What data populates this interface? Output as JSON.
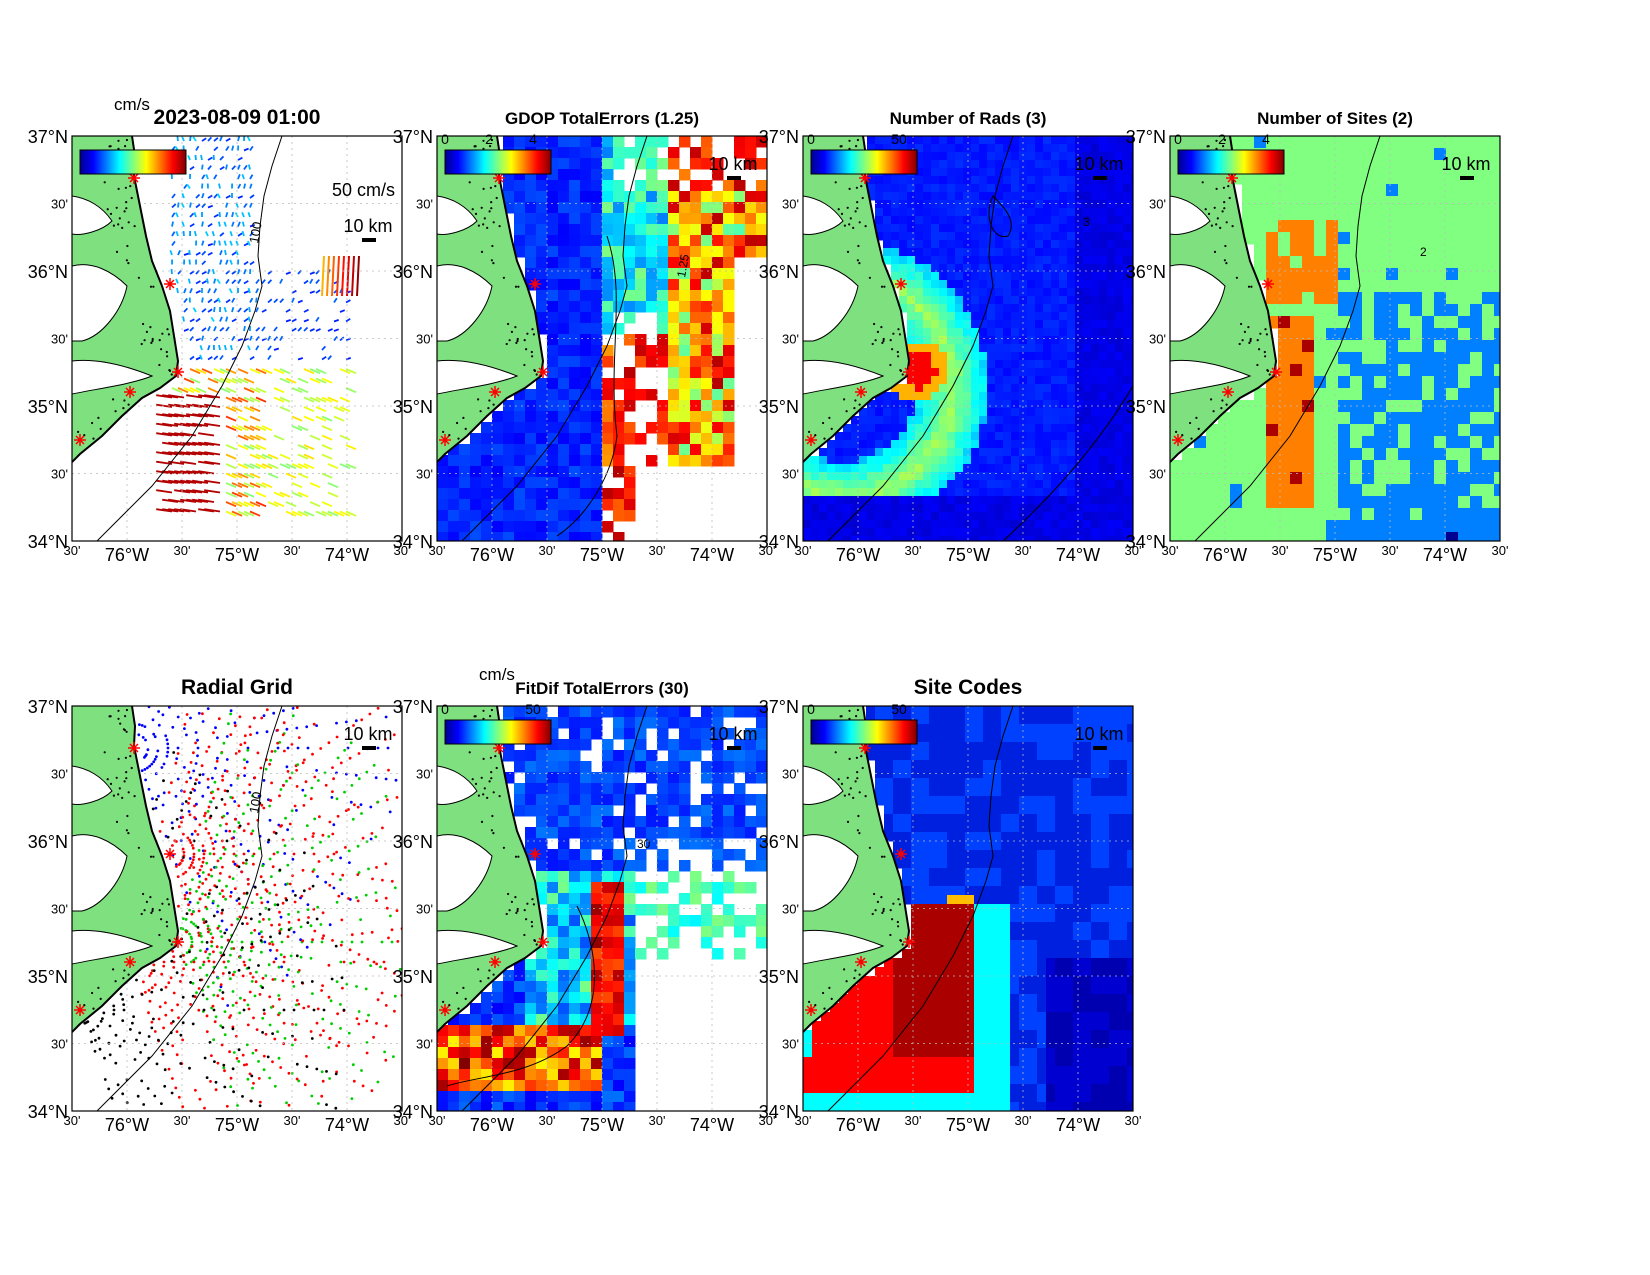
{
  "figure": {
    "timestamp": "2023-08-09 01:00",
    "lat_ticks": [
      "34°N",
      "30'",
      "35°N",
      "30'",
      "36°N",
      "30'",
      "37°N"
    ],
    "lon_ticks": [
      "30'",
      "76°W",
      "30'",
      "75°W",
      "30'",
      "74°W",
      "30'"
    ],
    "scale_label": "10 km",
    "colors": {
      "land": "#7fe07f",
      "coast": "#000000",
      "site_marker": "#ff0000"
    }
  },
  "panels": [
    {
      "id": "currents",
      "title": "2023-08-09 01:00",
      "colorbar_unit": "cm/s",
      "reference_vector_label": "50 cm/s",
      "legend_glyph_text": "",
      "isobath_label": "100"
    },
    {
      "id": "gdop",
      "title": "GDOP TotalErrors (1.25)",
      "colorbar_ticks": [
        "0",
        "2",
        "4"
      ],
      "contour_label": "1.25"
    },
    {
      "id": "nrads",
      "title": "Number of Rads (3)",
      "colorbar_ticks": [
        "0",
        "50"
      ],
      "contour_label": "3"
    },
    {
      "id": "nsites",
      "title": "Number of Sites (2)",
      "colorbar_ticks": [
        "0",
        "2",
        "4"
      ],
      "contour_label": "2"
    },
    {
      "id": "radgrid",
      "title": "Radial Grid",
      "isobath_label": "100"
    },
    {
      "id": "fitdif",
      "title": "FitDif TotalErrors (30)",
      "colorbar_unit": "cm/s",
      "colorbar_ticks": [
        "0",
        "50"
      ],
      "contour_label": "30"
    },
    {
      "id": "sitecodes",
      "title": "Site Codes",
      "colorbar_ticks": [
        "0",
        "50"
      ]
    }
  ]
}
